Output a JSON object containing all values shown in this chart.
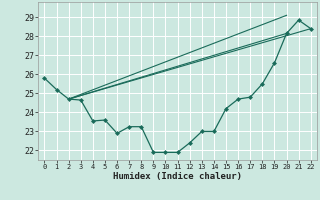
{
  "title": "",
  "xlabel": "Humidex (Indice chaleur)",
  "bg_color": "#cce8e0",
  "grid_color": "#ffffff",
  "line_color": "#1a6b5a",
  "xlim": [
    -0.5,
    22.5
  ],
  "ylim": [
    21.5,
    29.8
  ],
  "yticks": [
    22,
    23,
    24,
    25,
    26,
    27,
    28,
    29
  ],
  "xticks": [
    0,
    1,
    2,
    3,
    4,
    5,
    6,
    7,
    8,
    9,
    10,
    11,
    12,
    13,
    14,
    15,
    16,
    17,
    18,
    19,
    20,
    21,
    22
  ],
  "main_series": [
    [
      0,
      25.8
    ],
    [
      1,
      25.2
    ],
    [
      2,
      24.7
    ],
    [
      3,
      24.65
    ],
    [
      4,
      23.55
    ],
    [
      5,
      23.6
    ],
    [
      6,
      22.9
    ],
    [
      7,
      23.25
    ],
    [
      8,
      23.25
    ],
    [
      9,
      21.9
    ],
    [
      10,
      21.9
    ],
    [
      11,
      21.9
    ],
    [
      12,
      22.4
    ],
    [
      13,
      23.0
    ],
    [
      14,
      23.0
    ],
    [
      15,
      24.2
    ],
    [
      16,
      24.7
    ],
    [
      17,
      24.8
    ],
    [
      18,
      25.5
    ],
    [
      19,
      26.6
    ],
    [
      20,
      28.15
    ],
    [
      21,
      28.85
    ],
    [
      22,
      28.4
    ]
  ],
  "straight_lines": [
    [
      [
        2,
        24.7
      ],
      [
        20,
        29.1
      ]
    ],
    [
      [
        2,
        24.7
      ],
      [
        22,
        28.4
      ]
    ],
    [
      [
        2,
        24.7
      ],
      [
        20,
        28.15
      ]
    ]
  ]
}
